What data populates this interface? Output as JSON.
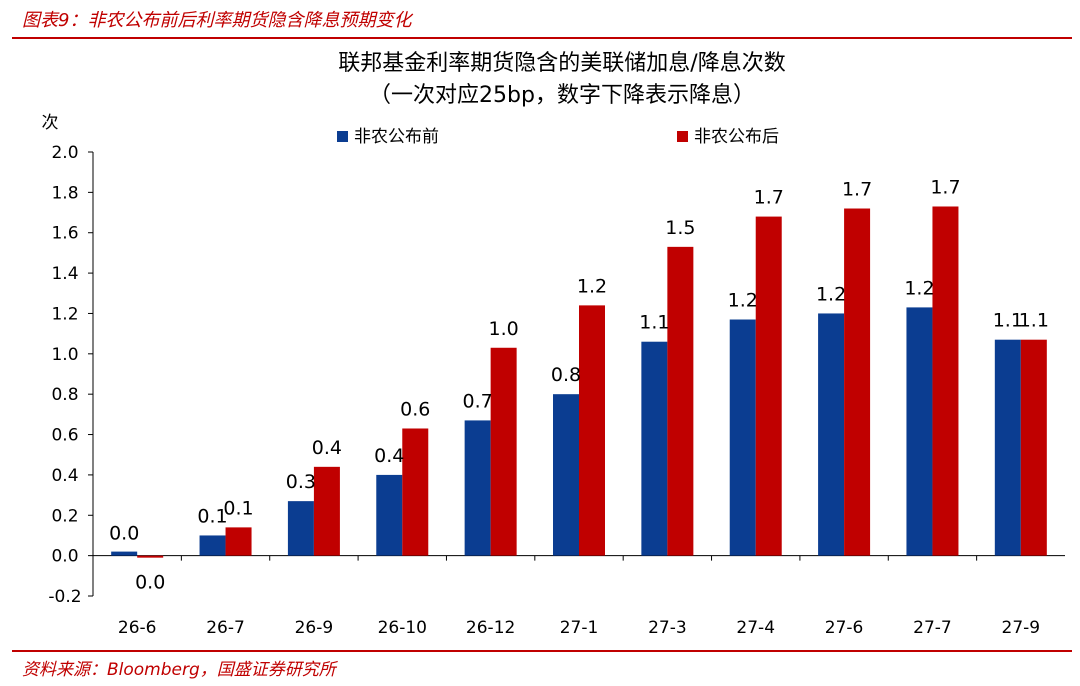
{
  "figure": {
    "caption": "图表9：非农公布前后利率期货隐含降息预期变化",
    "source": "资料来源：Bloomberg，国盛证券研究所"
  },
  "chart_data": {
    "type": "bar",
    "title": "联邦基金利率期货隐含的美联储加息/降息次数",
    "subtitle": "（一次对应25bp，数字下降表示降息）",
    "ylabel": "次",
    "xlabel": "",
    "ylim": [
      -0.2,
      2.0
    ],
    "yticks": [
      "-0.2",
      "0.0",
      "0.2",
      "0.4",
      "0.6",
      "0.8",
      "1.0",
      "1.2",
      "1.4",
      "1.6",
      "1.8",
      "2.0"
    ],
    "legend_position": "top",
    "grid": false,
    "categories": [
      "26-6",
      "26-7",
      "26-9",
      "26-10",
      "26-12",
      "27-1",
      "27-3",
      "27-4",
      "27-6",
      "27-7",
      "27-9"
    ],
    "series": [
      {
        "name": "非农公布前",
        "color": "#0b3d91",
        "values": [
          0.02,
          0.1,
          0.27,
          0.4,
          0.67,
          0.8,
          1.06,
          1.17,
          1.2,
          1.23,
          1.07
        ],
        "labels": [
          "0.0",
          "0.1",
          "0.3",
          "0.4",
          "0.7",
          "0.8",
          "1.1",
          "1.2",
          "1.2",
          "1.2",
          "1.1"
        ]
      },
      {
        "name": "非农公布后",
        "color": "#c00000",
        "values": [
          -0.01,
          0.14,
          0.44,
          0.63,
          1.03,
          1.24,
          1.53,
          1.68,
          1.72,
          1.73,
          1.07
        ],
        "labels": [
          "0.0",
          "0.1",
          "0.4",
          "0.6",
          "1.0",
          "1.2",
          "1.5",
          "1.7",
          "1.7",
          "1.7",
          "1.1"
        ]
      }
    ]
  }
}
